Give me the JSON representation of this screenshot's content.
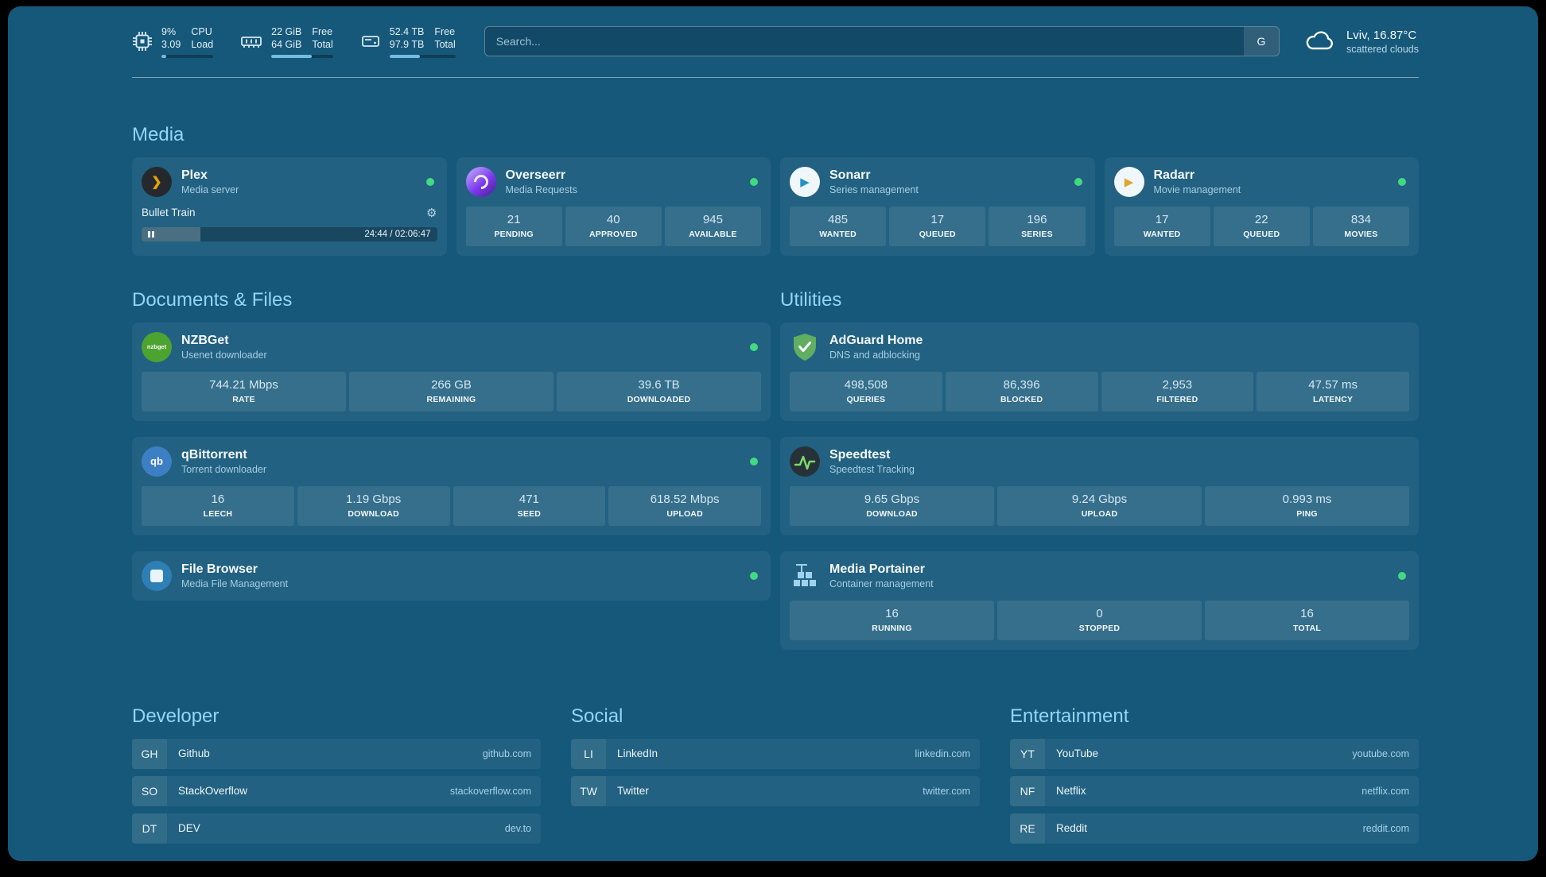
{
  "topbar": {
    "cpu": {
      "value1": "9%",
      "value2": "3.09",
      "label1": "CPU",
      "label2": "Load",
      "percent": 9
    },
    "memory": {
      "value1": "22 GiB",
      "value2": "64 GiB",
      "label1": "Free",
      "label2": "Total",
      "percent": 66
    },
    "disk": {
      "value1": "52.4 TB",
      "value2": "97.9 TB",
      "label1": "Free",
      "label2": "Total",
      "percent": 46
    },
    "search": {
      "placeholder": "Search...",
      "provider_label": "G"
    },
    "weather": {
      "location": "Lviv, 16.87°C",
      "condition": "scattered clouds"
    }
  },
  "icons": {
    "plex_glyph": "❯",
    "sonarr_glyph": "▶",
    "radarr_glyph": "▶",
    "nzbget_text": "nzbget",
    "qbittorrent_text": "qb",
    "gear": "⚙"
  },
  "media": {
    "title": "Media",
    "plex": {
      "name": "Plex",
      "subtitle": "Media server",
      "now_playing": "Bullet Train",
      "time": "24:44 / 02:06:47",
      "progress": 20
    },
    "overseerr": {
      "name": "Overseerr",
      "subtitle": "Media Requests",
      "stats": [
        {
          "value": "21",
          "label": "PENDING"
        },
        {
          "value": "40",
          "label": "APPROVED"
        },
        {
          "value": "945",
          "label": "AVAILABLE"
        }
      ]
    },
    "sonarr": {
      "name": "Sonarr",
      "subtitle": "Series management",
      "stats": [
        {
          "value": "485",
          "label": "WANTED"
        },
        {
          "value": "17",
          "label": "QUEUED"
        },
        {
          "value": "196",
          "label": "SERIES"
        }
      ]
    },
    "radarr": {
      "name": "Radarr",
      "subtitle": "Movie management",
      "stats": [
        {
          "value": "17",
          "label": "WANTED"
        },
        {
          "value": "22",
          "label": "QUEUED"
        },
        {
          "value": "834",
          "label": "MOVIES"
        }
      ]
    }
  },
  "documents": {
    "title": "Documents & Files",
    "nzbget": {
      "name": "NZBGet",
      "subtitle": "Usenet downloader",
      "stats": [
        {
          "value": "744.21 Mbps",
          "label": "RATE"
        },
        {
          "value": "266 GB",
          "label": "REMAINING"
        },
        {
          "value": "39.6 TB",
          "label": "DOWNLOADED"
        }
      ]
    },
    "qbittorrent": {
      "name": "qBittorrent",
      "subtitle": "Torrent downloader",
      "stats": [
        {
          "value": "16",
          "label": "LEECH"
        },
        {
          "value": "1.19 Gbps",
          "label": "DOWNLOAD"
        },
        {
          "value": "471",
          "label": "SEED"
        },
        {
          "value": "618.52 Mbps",
          "label": "UPLOAD"
        }
      ]
    },
    "filebrowser": {
      "name": "File Browser",
      "subtitle": "Media File Management"
    }
  },
  "utilities": {
    "title": "Utilities",
    "adguard": {
      "name": "AdGuard Home",
      "subtitle": "DNS and adblocking",
      "stats": [
        {
          "value": "498,508",
          "label": "QUERIES"
        },
        {
          "value": "86,396",
          "label": "BLOCKED"
        },
        {
          "value": "2,953",
          "label": "FILTERED"
        },
        {
          "value": "47.57 ms",
          "label": "LATENCY"
        }
      ]
    },
    "speedtest": {
      "name": "Speedtest",
      "subtitle": "Speedtest Tracking",
      "stats": [
        {
          "value": "9.65 Gbps",
          "label": "DOWNLOAD"
        },
        {
          "value": "9.24 Gbps",
          "label": "UPLOAD"
        },
        {
          "value": "0.993 ms",
          "label": "PING"
        }
      ]
    },
    "portainer": {
      "name": "Media Portainer",
      "subtitle": "Container management",
      "stats": [
        {
          "value": "16",
          "label": "RUNNING"
        },
        {
          "value": "0",
          "label": "STOPPED"
        },
        {
          "value": "16",
          "label": "TOTAL"
        }
      ]
    }
  },
  "bookmarks": [
    {
      "title": "Developer",
      "items": [
        {
          "abbr": "GH",
          "name": "Github",
          "domain": "github.com"
        },
        {
          "abbr": "SO",
          "name": "StackOverflow",
          "domain": "stackoverflow.com"
        },
        {
          "abbr": "DT",
          "name": "DEV",
          "domain": "dev.to"
        }
      ]
    },
    {
      "title": "Social",
      "items": [
        {
          "abbr": "LI",
          "name": "LinkedIn",
          "domain": "linkedin.com"
        },
        {
          "abbr": "TW",
          "name": "Twitter",
          "domain": "twitter.com"
        }
      ]
    },
    {
      "title": "Entertainment",
      "items": [
        {
          "abbr": "YT",
          "name": "YouTube",
          "domain": "youtube.com"
        },
        {
          "abbr": "NF",
          "name": "Netflix",
          "domain": "netflix.com"
        },
        {
          "abbr": "RE",
          "name": "Reddit",
          "domain": "reddit.com"
        }
      ]
    }
  ]
}
